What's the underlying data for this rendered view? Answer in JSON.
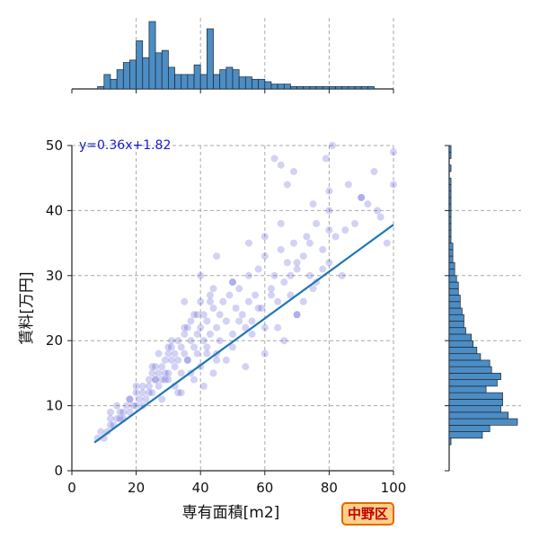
{
  "chart_data": {
    "type": "scatter",
    "xlabel": "専有面積[m2]",
    "ylabel": "賃料[万円]",
    "xlim": [
      0,
      100
    ],
    "ylim": [
      0,
      50
    ],
    "xticks": [
      "0",
      "20",
      "40",
      "60",
      "80",
      "100"
    ],
    "yticks": [
      "0",
      "10",
      "20",
      "30",
      "40",
      "50"
    ],
    "grid": true,
    "regression": {
      "label": "y=0.36x+1.82",
      "slope": 0.36,
      "intercept": 1.82,
      "x_range": [
        7,
        100
      ],
      "color": "#1f77b4"
    },
    "scatter_points": {
      "color": "#3333cc",
      "x": [
        8,
        9,
        10,
        11,
        12,
        12,
        13,
        14,
        15,
        15,
        16,
        17,
        18,
        18,
        19,
        20,
        20,
        21,
        22,
        22,
        23,
        24,
        24,
        25,
        25,
        26,
        26,
        27,
        27,
        28,
        28,
        29,
        29,
        30,
        30,
        31,
        31,
        32,
        32,
        33,
        33,
        34,
        34,
        35,
        35,
        36,
        36,
        37,
        37,
        38,
        38,
        39,
        39,
        40,
        40,
        41,
        41,
        42,
        42,
        43,
        43,
        44,
        44,
        45,
        45,
        46,
        47,
        48,
        49,
        50,
        50,
        51,
        52,
        53,
        54,
        55,
        55,
        56,
        57,
        58,
        59,
        60,
        60,
        62,
        63,
        64,
        65,
        66,
        67,
        68,
        69,
        70,
        70,
        72,
        73,
        74,
        75,
        76,
        78,
        80,
        80,
        82,
        84,
        86,
        88,
        90,
        92,
        94,
        96,
        98,
        100,
        12,
        14,
        16,
        18,
        20,
        22,
        24,
        26,
        28,
        30,
        32,
        34,
        36,
        38,
        40,
        42,
        44,
        46,
        48,
        50,
        52,
        54,
        56,
        58,
        60,
        62,
        64,
        66,
        68,
        70,
        72,
        74,
        76,
        78,
        80,
        25,
        27,
        29,
        31,
        33,
        35,
        37,
        39,
        41,
        43,
        45,
        30,
        35,
        40,
        45,
        50,
        55,
        60,
        65,
        70,
        75,
        80,
        85,
        90,
        95,
        100,
        63,
        65,
        67,
        69,
        79,
        81
      ],
      "y": [
        5,
        6,
        5,
        6,
        7,
        8,
        7,
        8,
        9,
        8,
        9,
        10,
        9,
        11,
        10,
        12,
        10,
        11,
        13,
        12,
        11,
        14,
        13,
        15,
        12,
        14,
        16,
        13,
        15,
        16,
        14,
        17,
        15,
        18,
        14,
        17,
        19,
        16,
        18,
        20,
        17,
        15,
        19,
        21,
        18,
        22,
        17,
        20,
        23,
        19,
        24,
        21,
        18,
        22,
        26,
        20,
        24,
        19,
        23,
        27,
        21,
        25,
        28,
        22,
        18,
        24,
        26,
        23,
        27,
        29,
        21,
        25,
        28,
        24,
        22,
        30,
        26,
        23,
        27,
        31,
        25,
        33,
        22,
        28,
        30,
        26,
        34,
        29,
        32,
        27,
        35,
        31,
        24,
        33,
        36,
        30,
        28,
        38,
        34,
        32,
        40,
        36,
        30,
        44,
        38,
        42,
        41,
        46,
        39,
        35,
        44,
        9,
        10,
        8,
        11,
        13,
        10,
        12,
        14,
        11,
        15,
        13,
        12,
        17,
        14,
        16,
        18,
        15,
        20,
        17,
        19,
        23,
        16,
        21,
        25,
        18,
        27,
        22,
        20,
        30,
        24,
        26,
        35,
        29,
        31,
        37,
        16,
        18,
        14,
        20,
        12,
        22,
        15,
        24,
        13,
        26,
        17,
        19,
        26,
        30,
        33,
        29,
        35,
        36,
        38,
        32,
        41,
        43,
        37,
        42,
        40,
        49,
        48,
        47,
        44,
        46,
        48,
        50
      ],
      "alpha": 0.22
    },
    "x_marginal_histogram": {
      "bin_edges": [
        8,
        10,
        12,
        14,
        16,
        18,
        20,
        22,
        24,
        26,
        28,
        30,
        32,
        34,
        36,
        38,
        40,
        42,
        44,
        46,
        48,
        50,
        52,
        54,
        56,
        58,
        60,
        62,
        64,
        66,
        68,
        70,
        72,
        74,
        76,
        78,
        80,
        82,
        84,
        86,
        88,
        90,
        92,
        94,
        96,
        98,
        100
      ],
      "counts": [
        1,
        6,
        4,
        8,
        11,
        12,
        20,
        13,
        28,
        15,
        16,
        9,
        6,
        6,
        6,
        10,
        6,
        25,
        6,
        8,
        9,
        8,
        5,
        5,
        4,
        4,
        3,
        2,
        2,
        2,
        1,
        1,
        1,
        1,
        1,
        1,
        1,
        1,
        1,
        1,
        1,
        1,
        1,
        0,
        0,
        0
      ],
      "color": "#4c8dc4"
    },
    "y_marginal_histogram": {
      "bin_edges": [
        4,
        5,
        6,
        7,
        8,
        9,
        10,
        11,
        12,
        13,
        14,
        15,
        16,
        17,
        18,
        19,
        20,
        21,
        22,
        23,
        24,
        25,
        26,
        27,
        28,
        29,
        30,
        31,
        32,
        33,
        34,
        35,
        36,
        37,
        38,
        39,
        40,
        41,
        42,
        43,
        44,
        45,
        46,
        47,
        48,
        49,
        50
      ],
      "counts": [
        1,
        18,
        22,
        37,
        32,
        28,
        29,
        29,
        20,
        26,
        28,
        23,
        22,
        17,
        15,
        13,
        12,
        9,
        8,
        8,
        7,
        6,
        6,
        5,
        5,
        4,
        3,
        3,
        2,
        2,
        2,
        1,
        1,
        1,
        1,
        1,
        1,
        1,
        1,
        1,
        1,
        0,
        1,
        0,
        1,
        1
      ],
      "color": "#4c8dc4"
    }
  },
  "badge": {
    "text": "中野区"
  }
}
